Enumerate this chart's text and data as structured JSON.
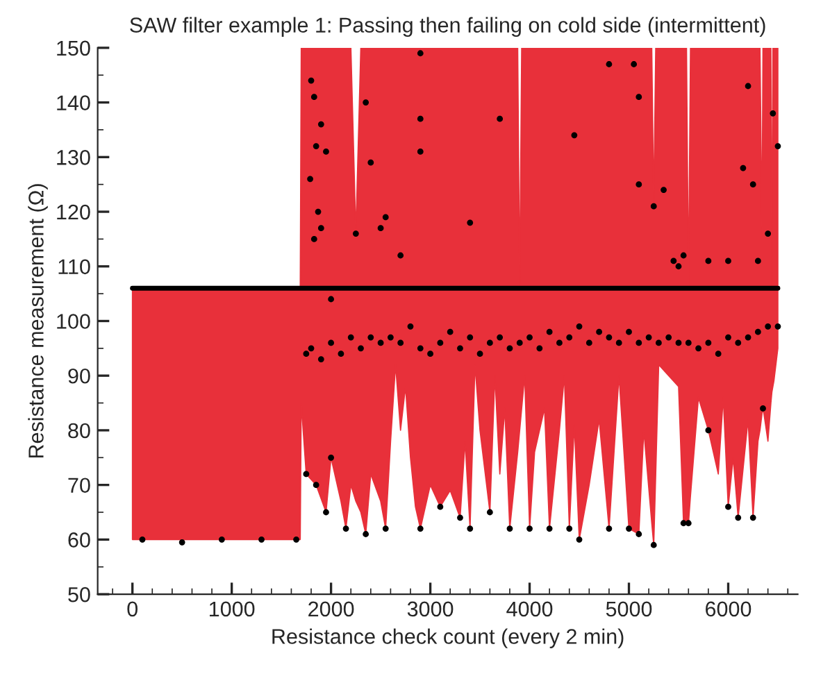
{
  "chart_data": {
    "type": "line",
    "title": "SAW filter example 1: Passing then failing on cold side (intermittent)",
    "xlabel": "Resistance check count (every 2 min)",
    "ylabel": "Resistance measurement (Ω)",
    "xlim": [
      -350,
      6700
    ],
    "ylim": [
      50,
      150
    ],
    "xticks": [
      0,
      1000,
      2000,
      3000,
      4000,
      5000,
      6000
    ],
    "yticks": [
      50,
      60,
      70,
      80,
      90,
      100,
      110,
      120,
      130,
      140,
      150
    ],
    "grid": false,
    "legend": false,
    "series": [
      {
        "type": "line",
        "color": "#000000",
        "x": [
          0,
          6500
        ],
        "values": [
          106,
          106
        ]
      },
      {
        "type": "line",
        "color": "#e8303a",
        "x": [
          0,
          1690,
          1700,
          1750,
          1850,
          1950,
          2000,
          2100,
          2150,
          2200,
          2250,
          2300,
          2350,
          2400,
          2500,
          2550,
          2600,
          2650,
          2700,
          2750,
          2800,
          2850,
          2900,
          3000,
          3100,
          3200,
          3300,
          3350,
          3400,
          3450,
          3500,
          3600,
          3650,
          3700,
          3750,
          3800,
          3880,
          3900,
          3920,
          3950,
          4000,
          4050,
          4150,
          4200,
          4300,
          4350,
          4400,
          4450,
          4500,
          4600,
          4700,
          4800,
          4900,
          5000,
          5100,
          5150,
          5230,
          5250,
          5270,
          5300,
          5500,
          5550,
          5580,
          5600,
          5620,
          5700,
          5800,
          5900,
          5950,
          6000,
          6050,
          6100,
          6200,
          6250,
          6300,
          6320,
          6340,
          6350,
          6360,
          6400,
          6430,
          6440,
          6450,
          6460,
          6500
        ],
        "values": [
          null,
          null,
          null,
          null,
          null,
          null,
          null,
          null,
          null,
          null,
          null,
          null,
          null,
          null,
          null,
          null,
          null,
          null,
          null,
          null,
          null,
          null,
          null,
          null,
          null,
          null,
          null,
          null,
          null,
          null,
          null,
          null,
          null,
          null,
          null,
          null,
          null,
          null,
          null,
          null,
          null,
          null,
          null,
          null,
          null,
          null,
          null,
          null,
          null,
          null,
          null,
          null,
          null,
          null,
          null,
          null,
          null,
          null,
          null,
          null,
          null,
          null,
          null,
          null,
          null,
          null,
          null,
          null,
          null,
          null,
          null,
          null,
          null,
          null,
          null,
          null,
          null,
          null,
          null,
          null,
          null,
          null,
          null,
          null,
          null
        ],
        "lower": [
          60,
          60,
          85,
          72,
          70,
          65,
          75,
          67,
          62,
          70,
          67,
          65,
          61,
          72,
          67,
          62,
          78,
          92,
          80,
          88,
          75,
          66,
          62,
          70,
          66,
          69,
          64,
          78,
          62,
          92,
          80,
          65,
          90,
          72,
          84,
          62,
          76,
          80,
          84,
          90,
          62,
          76,
          84,
          62,
          80,
          90,
          62,
          81,
          60,
          70,
          82,
          62,
          90,
          62,
          61,
          80,
          63,
          59,
          72,
          92,
          88,
          63,
          63,
          63,
          68,
          86,
          80,
          72,
          86,
          66,
          75,
          64,
          82,
          64,
          78,
          80,
          83,
          84,
          83,
          78,
          85,
          87,
          88,
          89,
          95
        ],
        "upper": [
          106,
          106,
          150,
          150,
          150,
          150,
          150,
          150,
          150,
          150,
          116,
          150,
          150,
          150,
          150,
          150,
          150,
          150,
          150,
          150,
          150,
          150,
          150,
          150,
          150,
          150,
          150,
          150,
          150,
          150,
          150,
          150,
          150,
          150,
          150,
          150,
          150,
          106,
          150,
          150,
          150,
          150,
          150,
          150,
          150,
          150,
          150,
          150,
          150,
          150,
          150,
          150,
          150,
          150,
          150,
          150,
          150,
          121,
          150,
          150,
          150,
          150,
          150,
          106,
          150,
          150,
          150,
          150,
          150,
          150,
          150,
          150,
          150,
          150,
          150,
          150,
          116,
          150,
          150,
          150,
          150,
          106,
          150,
          150,
          150
        ]
      },
      {
        "type": "scatter",
        "color": "#000000",
        "marker": "circle",
        "x": [
          1800,
          1830,
          1900,
          1850,
          1950,
          1790,
          1870,
          1900,
          1830,
          2000,
          2250,
          2350,
          2400,
          2500,
          2550,
          2700,
          2900,
          2900,
          2900,
          3400,
          3700,
          4450,
          4800,
          5050,
          5100,
          5100,
          5250,
          5350,
          5450,
          5500,
          5550,
          5800,
          6000,
          6150,
          6200,
          6250,
          6300,
          6400,
          6500,
          6450,
          100,
          500,
          900,
          1300,
          1650,
          1750,
          1800,
          1900,
          2000,
          2100,
          2200,
          2300,
          2400,
          2500,
          2600,
          2700,
          2800,
          2900,
          3000,
          3100,
          3200,
          3300,
          3400,
          3500,
          3600,
          3700,
          3800,
          3900,
          4000,
          4100,
          4200,
          4300,
          4400,
          4500,
          4600,
          4700,
          4800,
          4900,
          5000,
          5100,
          5200,
          5300,
          5400,
          5500,
          5600,
          5700,
          5800,
          5900,
          6000,
          6100,
          6200,
          6300,
          6400,
          6500,
          1750,
          1850,
          1950,
          2000,
          2150,
          2350,
          2550,
          2900,
          3100,
          3300,
          3400,
          3600,
          3800,
          4000,
          4200,
          4400,
          4500,
          4800,
          5000,
          5100,
          5250,
          5550,
          5600,
          5800,
          6000,
          6100,
          6250,
          6350
        ],
        "values": [
          144,
          141,
          136,
          132,
          131,
          126,
          120,
          117,
          115,
          104,
          116,
          140,
          129,
          117,
          119,
          112,
          149,
          137,
          131,
          118,
          137,
          134,
          147,
          147,
          141,
          125,
          121,
          124,
          111,
          110,
          112,
          111,
          111,
          128,
          143,
          125,
          111,
          116,
          132,
          138,
          60,
          59.5,
          60,
          60,
          60,
          94,
          95,
          93,
          96,
          94,
          97,
          95,
          97,
          96,
          97,
          96,
          99,
          95,
          94,
          96,
          98,
          95,
          97,
          94,
          96,
          97,
          95,
          96,
          97,
          95,
          98,
          96,
          97,
          99,
          96,
          98,
          97,
          96,
          98,
          96,
          97,
          96,
          97,
          96,
          96,
          95,
          96,
          94,
          97,
          96,
          97,
          98,
          99,
          99,
          72,
          70,
          65,
          75,
          62,
          61,
          62,
          62,
          66,
          64,
          62,
          65,
          62,
          62,
          62,
          62,
          60,
          62,
          62,
          61,
          59,
          63,
          63,
          80,
          66,
          64,
          64,
          84
        ]
      }
    ]
  }
}
